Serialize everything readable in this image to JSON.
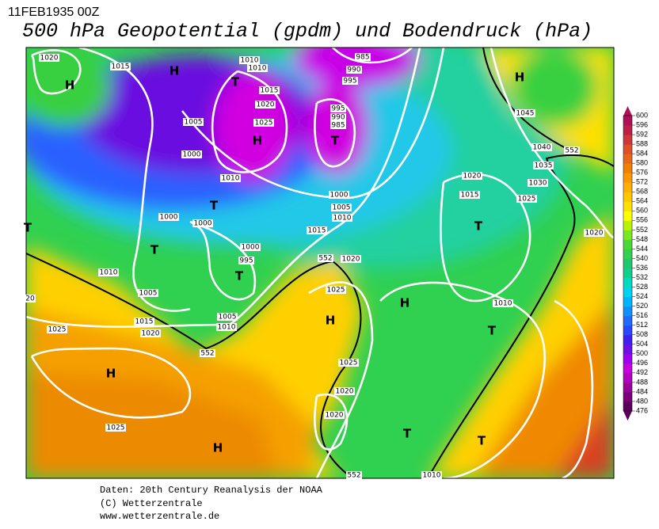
{
  "header": {
    "date": "11FEB1935 00Z",
    "title": "500 hPa Geopotential (gpdm) und Bodendruck (hPa)"
  },
  "map": {
    "labels": [
      "1020",
      "1015",
      "H",
      "H",
      "T",
      "1010",
      "1010",
      "985",
      "990",
      "995",
      "1015",
      "1020",
      "1025",
      "H",
      "995",
      "990",
      "985",
      "T",
      "1005",
      "1000",
      "1010",
      "1000",
      "1005",
      "1010",
      "T",
      "1000",
      "1000",
      "1015",
      "1020",
      "1015",
      "1045",
      "H",
      "1040",
      "552",
      "1035",
      "1030",
      "1025",
      "T",
      "1020",
      "T",
      "1000",
      "995",
      "T",
      "552",
      "1020",
      "1010",
      "1005",
      "1025",
      "H",
      "1010",
      "H",
      "T",
      "1005",
      "1010",
      "1015",
      "1020",
      "1025",
      "552",
      "1025",
      "H",
      "1020",
      "1020",
      "1025",
      "T",
      "T",
      "H",
      "552",
      "1010",
      "T",
      "20"
    ]
  },
  "legend": {
    "ticks": [
      476,
      480,
      484,
      488,
      492,
      496,
      500,
      504,
      508,
      512,
      516,
      520,
      524,
      528,
      532,
      536,
      540,
      544,
      548,
      552,
      556,
      560,
      564,
      568,
      572,
      576,
      580,
      584,
      588,
      592,
      596,
      600
    ],
    "colors": [
      "#5a005a",
      "#7a007a",
      "#9a009a",
      "#b400c0",
      "#c800e0",
      "#a000f0",
      "#7010e8",
      "#4020f0",
      "#2848ff",
      "#1e6cff",
      "#1090ff",
      "#00b4ff",
      "#00d4f0",
      "#00dcc0",
      "#10d090",
      "#20c870",
      "#30d050",
      "#48d838",
      "#78e820",
      "#b8f400",
      "#ffff00",
      "#ffe000",
      "#ffc800",
      "#ffb000",
      "#ff9800",
      "#f08000",
      "#e86818",
      "#e05028",
      "#d03838",
      "#c02048",
      "#b01058"
    ]
  },
  "footer": {
    "lines": [
      "Daten: 20th Century Reanalysis der NOAA",
      "(C) Wetterzentrale",
      "www.wetterzentrale.de"
    ]
  }
}
